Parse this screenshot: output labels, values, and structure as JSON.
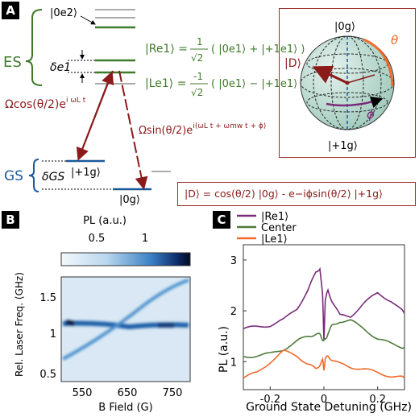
{
  "panels": {
    "a": "A",
    "b": "B",
    "c": "C"
  },
  "colors": {
    "es_green": "#3f7a2a",
    "gs_blue": "#1a5a9a",
    "drive_red": "#8b1a1a",
    "gray_level": "#aaaaaa",
    "purple": "#7a2a7a",
    "orange": "#f06a2a",
    "frame_red": "#9b2b2b",
    "sphere_fill": "#b9d9cf"
  },
  "panel_a": {
    "state_0e2": "|0e2⟩",
    "es_label": "ES",
    "gs_label": "GS",
    "delta_e1": "δe1",
    "delta_gs": "δGS",
    "state_p1g": "|+1g⟩",
    "state_0g": "|0g⟩",
    "omega_cos": "Ωcos(θ/2)e",
    "omega_cos_exp": "i ωL t",
    "omega_sin": "Ωsin(θ/2)e",
    "omega_sin_exp": "i(ωL t + ωmw t + ϕ)",
    "r_state": "|Re1⟩ =",
    "r_frac": "1",
    "r_sqrt": "√2",
    "r_rhs": "( |0e1⟩ + |+1e1⟩ )",
    "l_state": "|Le1⟩ =",
    "l_frac": "-1",
    "l_sqrt": "√2",
    "l_rhs": "( |0e1⟩ − |+1e1⟩ )",
    "bloch_top": "|0g⟩",
    "bloch_bottom": "|+1g⟩",
    "bloch_d": "|D⟩",
    "bloch_theta": "θ",
    "bloch_phi": "ϕ",
    "dark_state": "|D⟩ = cos(θ/2) |0g⟩ - e−iϕsin(θ/2) |+1g⟩"
  },
  "panel_b": {
    "colorbar_title": "PL (a.u.)",
    "colorbar_ticks": [
      "0.5",
      "1"
    ],
    "xlabel": "B Field (G)",
    "ylabel": "Rel. Laser Freq. (GHz)",
    "xticks": [
      "550",
      "650",
      "750"
    ],
    "yticks": [
      "1.5",
      "1",
      "0.5"
    ]
  },
  "chart_data": {
    "type": "line",
    "title": "",
    "xlabel": "Ground State Detuning (GHz)",
    "ylabel": "PL (a.u.)",
    "xlim": [
      -0.3,
      0.3
    ],
    "ylim": [
      0.45,
      3.3
    ],
    "xticks": [
      "-0.2",
      "0",
      "0.2"
    ],
    "yticks": [
      "3",
      "2",
      "1"
    ],
    "legend_position": "top-left",
    "series": [
      {
        "name": "|Re1⟩",
        "color": "#7a2a7a",
        "x": [
          -0.3,
          -0.25,
          -0.2,
          -0.15,
          -0.1,
          -0.06,
          -0.03,
          -0.015,
          -0.005,
          0,
          0.005,
          0.015,
          0.03,
          0.06,
          0.1,
          0.15,
          0.2,
          0.25,
          0.3
        ],
        "y": [
          1.65,
          1.68,
          1.72,
          1.82,
          2.05,
          2.4,
          2.75,
          2.85,
          2.3,
          1.45,
          2.2,
          2.4,
          2.2,
          1.9,
          1.9,
          2.15,
          2.35,
          2.2,
          1.95
        ]
      },
      {
        "name": "Center",
        "color": "#4e7a3a",
        "x": [
          -0.3,
          -0.25,
          -0.2,
          -0.15,
          -0.1,
          -0.06,
          -0.03,
          -0.015,
          -0.005,
          0,
          0.005,
          0.015,
          0.03,
          0.06,
          0.1,
          0.15,
          0.2,
          0.25,
          0.3
        ],
        "y": [
          1.1,
          1.12,
          1.15,
          1.25,
          1.4,
          1.5,
          1.55,
          1.52,
          1.45,
          1.4,
          1.45,
          1.55,
          1.7,
          1.8,
          1.8,
          1.65,
          1.45,
          1.35,
          1.28
        ]
      },
      {
        "name": "|Le1⟩",
        "color": "#f06a2a",
        "x": [
          -0.3,
          -0.25,
          -0.2,
          -0.15,
          -0.1,
          -0.06,
          -0.03,
          -0.015,
          -0.005,
          0,
          0.005,
          0.015,
          0.03,
          0.06,
          0.1,
          0.15,
          0.2,
          0.25,
          0.3
        ],
        "y": [
          0.68,
          0.78,
          1.0,
          1.2,
          1.12,
          0.95,
          0.85,
          0.95,
          1.02,
          0.85,
          1.05,
          1.1,
          1.05,
          0.95,
          0.9,
          0.85,
          0.78,
          0.72,
          0.68
        ]
      }
    ]
  }
}
